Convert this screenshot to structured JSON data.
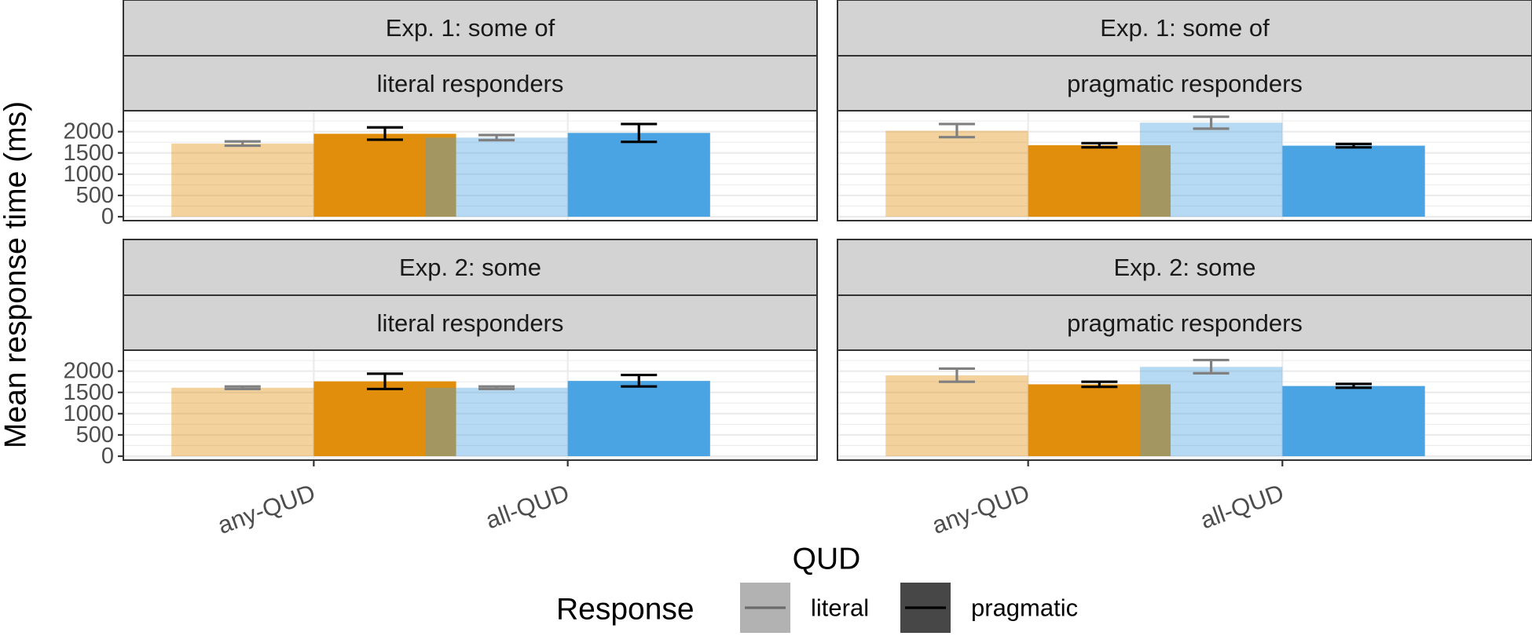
{
  "chart_data": {
    "type": "bar",
    "xlabel": "QUD",
    "ylabel": "Mean response time (ms)",
    "ylim": [
      0,
      2400
    ],
    "yticks": [
      0,
      500,
      1000,
      1500,
      2000
    ],
    "grid": true,
    "categories": [
      "any-QUD",
      "all-QUD"
    ],
    "legend": {
      "title": "Response",
      "position": "bottom",
      "entries": [
        {
          "label": "literal",
          "key": "literal"
        },
        {
          "label": "pragmatic",
          "key": "pragmatic"
        }
      ]
    },
    "colors": {
      "any-QUD": "#E08E0B",
      "all-QUD": "#4AA3E3",
      "literal_opacity": 0.4,
      "errorbar_literal": "#808080",
      "errorbar_pragmatic": "#000000"
    },
    "facets": [
      {
        "row_label": "Exp. 1: some of",
        "col_label": "literal responders",
        "bars": [
          {
            "qud": "any-QUD",
            "response": "literal",
            "value": 1720,
            "lo": 1670,
            "hi": 1770
          },
          {
            "qud": "any-QUD",
            "response": "pragmatic",
            "value": 1950,
            "lo": 1810,
            "hi": 2100
          },
          {
            "qud": "all-QUD",
            "response": "literal",
            "value": 1860,
            "lo": 1800,
            "hi": 1920
          },
          {
            "qud": "all-QUD",
            "response": "pragmatic",
            "value": 1970,
            "lo": 1760,
            "hi": 2180
          }
        ]
      },
      {
        "row_label": "Exp. 1: some of",
        "col_label": "pragmatic responders",
        "bars": [
          {
            "qud": "any-QUD",
            "response": "literal",
            "value": 2020,
            "lo": 1870,
            "hi": 2180
          },
          {
            "qud": "any-QUD",
            "response": "pragmatic",
            "value": 1680,
            "lo": 1630,
            "hi": 1730
          },
          {
            "qud": "all-QUD",
            "response": "literal",
            "value": 2210,
            "lo": 2070,
            "hi": 2350
          },
          {
            "qud": "all-QUD",
            "response": "pragmatic",
            "value": 1670,
            "lo": 1630,
            "hi": 1710
          }
        ]
      },
      {
        "row_label": "Exp. 2: some",
        "col_label": "literal responders",
        "bars": [
          {
            "qud": "any-QUD",
            "response": "literal",
            "value": 1610,
            "lo": 1580,
            "hi": 1640
          },
          {
            "qud": "any-QUD",
            "response": "pragmatic",
            "value": 1760,
            "lo": 1580,
            "hi": 1940
          },
          {
            "qud": "all-QUD",
            "response": "literal",
            "value": 1610,
            "lo": 1580,
            "hi": 1640
          },
          {
            "qud": "all-QUD",
            "response": "pragmatic",
            "value": 1770,
            "lo": 1640,
            "hi": 1910
          }
        ]
      },
      {
        "row_label": "Exp. 2: some",
        "col_label": "pragmatic responders",
        "bars": [
          {
            "qud": "any-QUD",
            "response": "literal",
            "value": 1900,
            "lo": 1750,
            "hi": 2060
          },
          {
            "qud": "any-QUD",
            "response": "pragmatic",
            "value": 1690,
            "lo": 1630,
            "hi": 1750
          },
          {
            "qud": "all-QUD",
            "response": "literal",
            "value": 2100,
            "lo": 1950,
            "hi": 2260
          },
          {
            "qud": "all-QUD",
            "response": "pragmatic",
            "value": 1650,
            "lo": 1610,
            "hi": 1700
          }
        ]
      }
    ]
  }
}
